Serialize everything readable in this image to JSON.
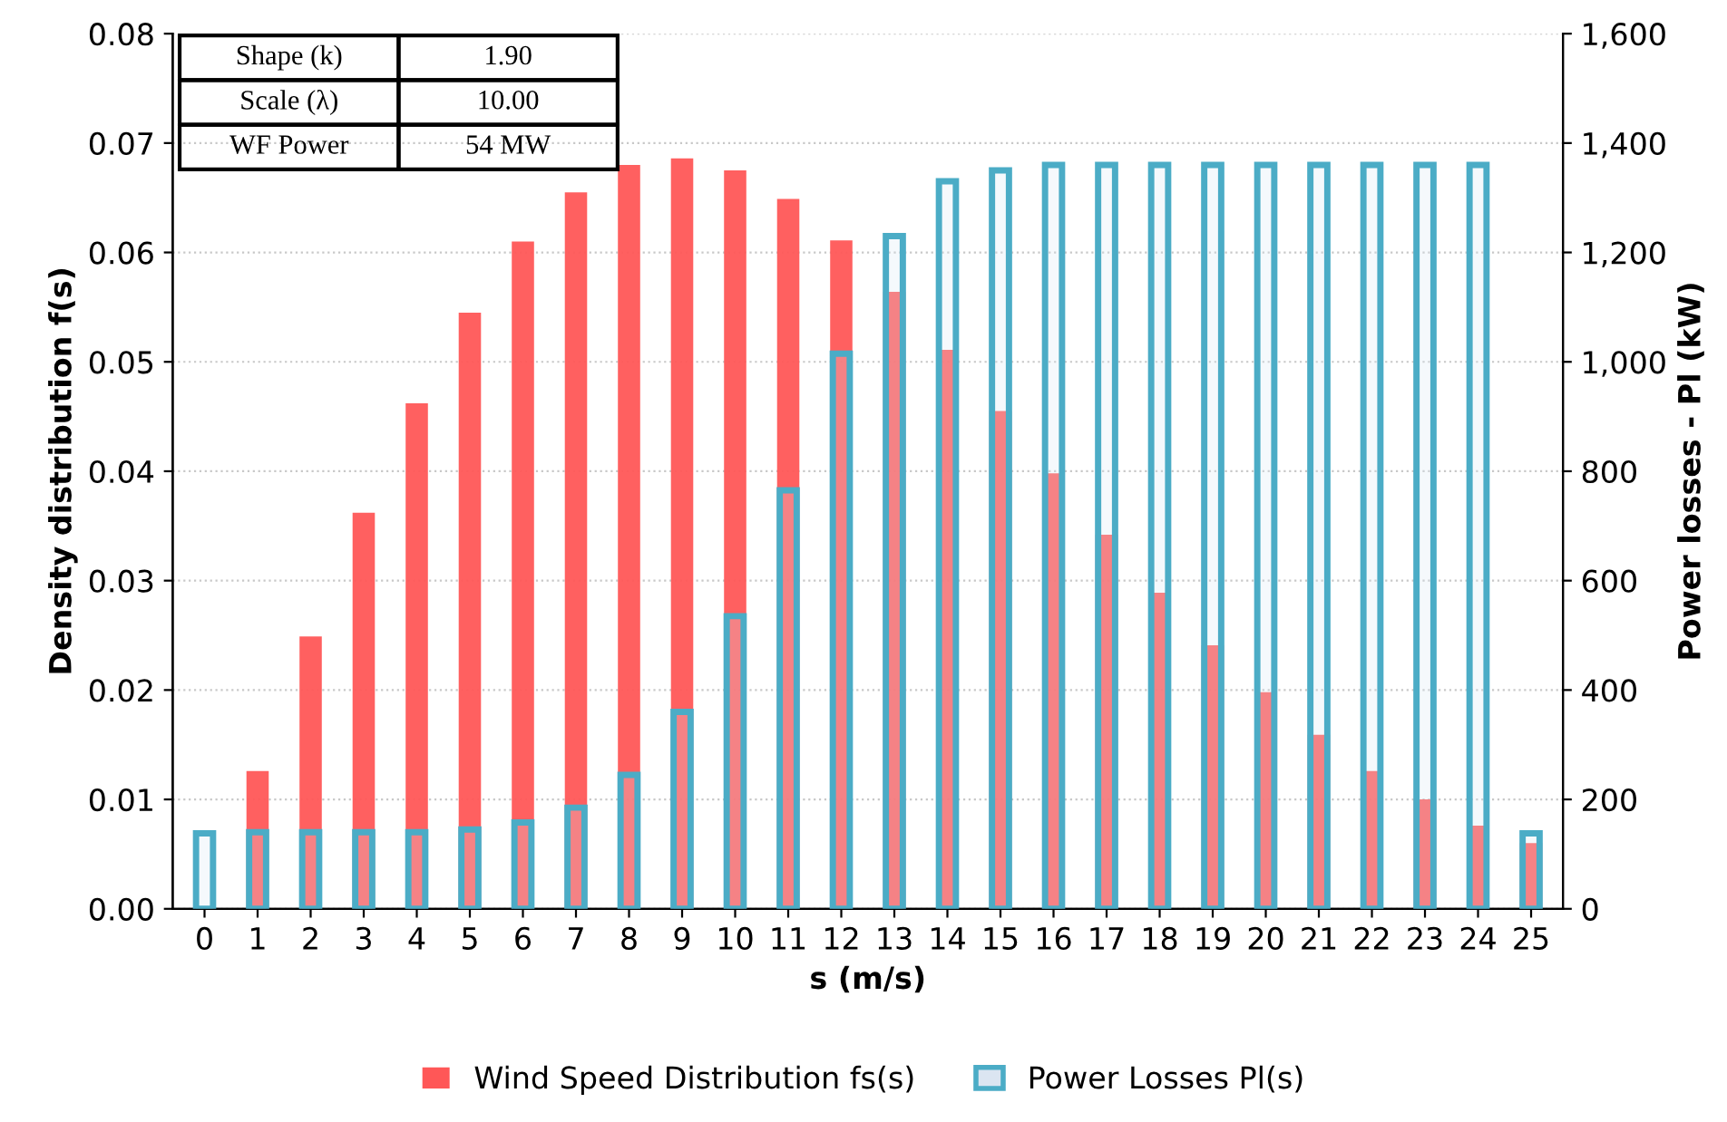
{
  "chart_data": {
    "type": "bar",
    "xlabel": "s (m/s)",
    "ylabel": "Density distribution f(s)",
    "y2label": "Power losses - Pl (kW)",
    "categories": [
      "0",
      "1",
      "2",
      "3",
      "4",
      "5",
      "6",
      "7",
      "8",
      "9",
      "10",
      "11",
      "12",
      "13",
      "14",
      "15",
      "16",
      "17",
      "18",
      "19",
      "20",
      "21",
      "22",
      "23",
      "24",
      "25"
    ],
    "series": [
      {
        "name": "Wind Speed Distribution fs(s)",
        "color": "#ff5757",
        "values": [
          0,
          0.0126,
          0.0249,
          0.0362,
          0.0462,
          0.0545,
          0.061,
          0.0655,
          0.068,
          0.0686,
          0.0675,
          0.0649,
          0.0611,
          0.0564,
          0.0511,
          0.0455,
          0.0398,
          0.0342,
          0.0289,
          0.0241,
          0.0198,
          0.0159,
          0.0126,
          0.01,
          0.0076,
          0.006
        ]
      },
      {
        "name": "Power Losses Pl(s)",
        "color": "#4bacc6",
        "axis": "y2",
        "values": [
          138,
          140,
          140,
          140,
          140,
          145,
          158,
          185,
          245,
          360,
          535,
          765,
          1015,
          1230,
          1330,
          1350,
          1360,
          1360,
          1360,
          1360,
          1360,
          1360,
          1360,
          1360,
          1360,
          138
        ]
      }
    ],
    "ylim": [
      0,
      0.08
    ],
    "yticks": [
      {
        "value": 0,
        "label": "0.00"
      },
      {
        "value": 0.01,
        "label": "0.01"
      },
      {
        "value": 0.02,
        "label": "0.02"
      },
      {
        "value": 0.03,
        "label": "0.03"
      },
      {
        "value": 0.04,
        "label": "0.04"
      },
      {
        "value": 0.05,
        "label": "0.05"
      },
      {
        "value": 0.06,
        "label": "0.06"
      },
      {
        "value": 0.07,
        "label": "0.07"
      },
      {
        "value": 0.08,
        "label": "0.08"
      }
    ],
    "y2lim": [
      0,
      1600
    ],
    "y2ticks": [
      0,
      200,
      400,
      600,
      800,
      {
        "value": 1000,
        "label": "1,000"
      },
      {
        "value": 1200,
        "label": "1,200"
      },
      {
        "value": 1400,
        "label": "1,400"
      },
      {
        "value": 1600,
        "label": "1,600"
      }
    ],
    "grid": "y",
    "legend": "bottom",
    "annotations": [
      "Shape (k)",
      "1.90",
      "Scale (λ)",
      "10.00",
      "WF Power",
      "54 MW"
    ]
  }
}
